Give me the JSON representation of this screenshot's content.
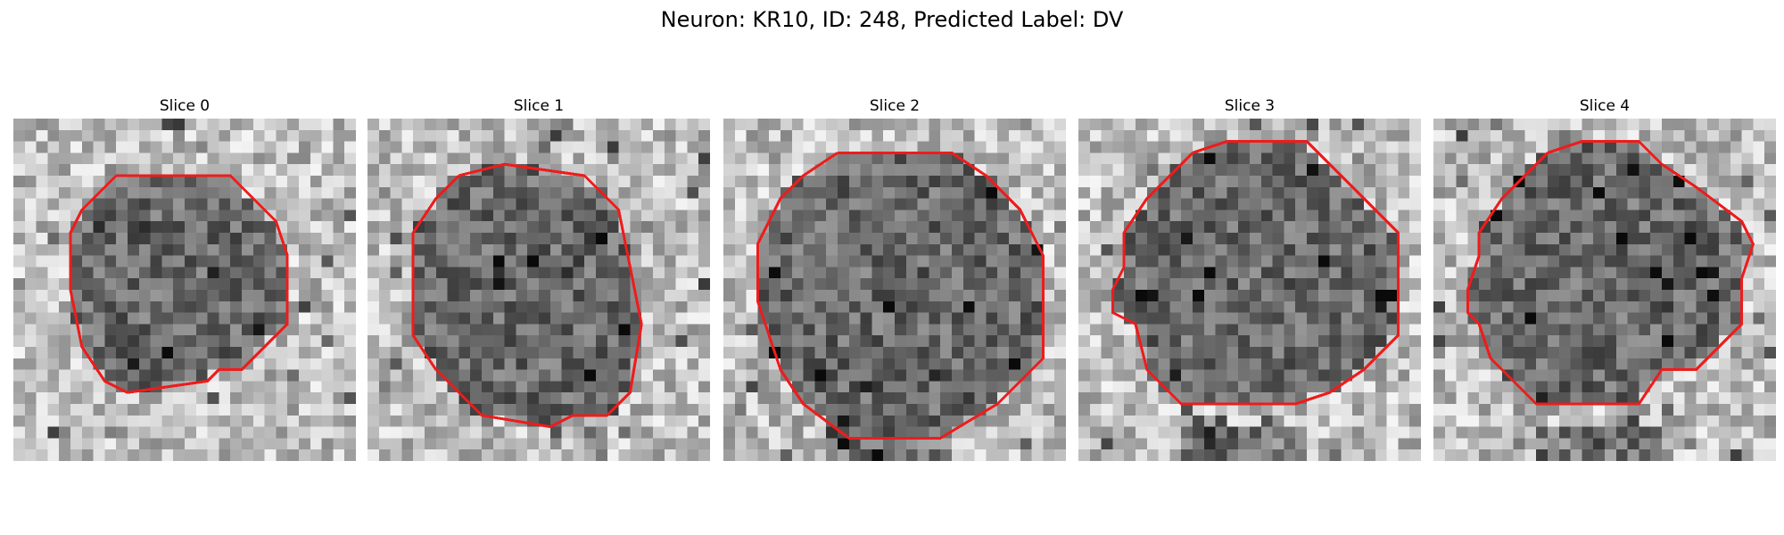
{
  "figure": {
    "title": "Neuron: KR10, ID: 248, Predicted Label: DV",
    "contour_color": "#ee1c1c"
  },
  "slices": [
    {
      "label": "Slice 0"
    },
    {
      "label": "Slice 1"
    },
    {
      "label": "Slice 2"
    },
    {
      "label": "Slice 3"
    },
    {
      "label": "Slice 4"
    }
  ]
}
